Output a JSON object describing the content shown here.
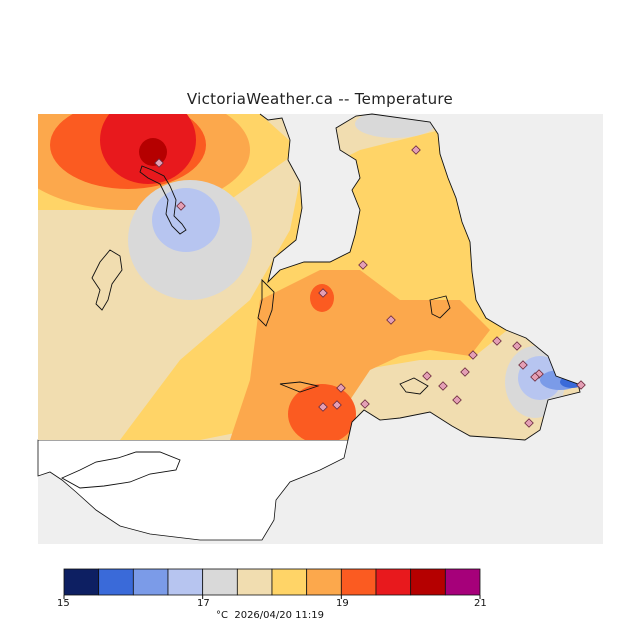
{
  "title": "VictoriaWeather.ca -- Temperature",
  "colors": {
    "background_panel": "#efefef",
    "land_white": "#ffffff",
    "coast": "#111111",
    "station_fill": "#e49fb5"
  },
  "scale": {
    "min": 15,
    "max": 21,
    "step": 0.5,
    "unit": "°C",
    "timestamp": "2026/04/20 11:19",
    "labels": [
      "15",
      "17",
      "19",
      "21"
    ],
    "colors": [
      "#0d1f62",
      "#3a6ad9",
      "#7b9be8",
      "#b7c5f0",
      "#d9d9d9",
      "#f1ddb0",
      "#ffd467",
      "#fca84c",
      "#fb5b21",
      "#e8191d",
      "#b50000",
      "#a6007a"
    ]
  },
  "stations": {
    "count": 22
  }
}
